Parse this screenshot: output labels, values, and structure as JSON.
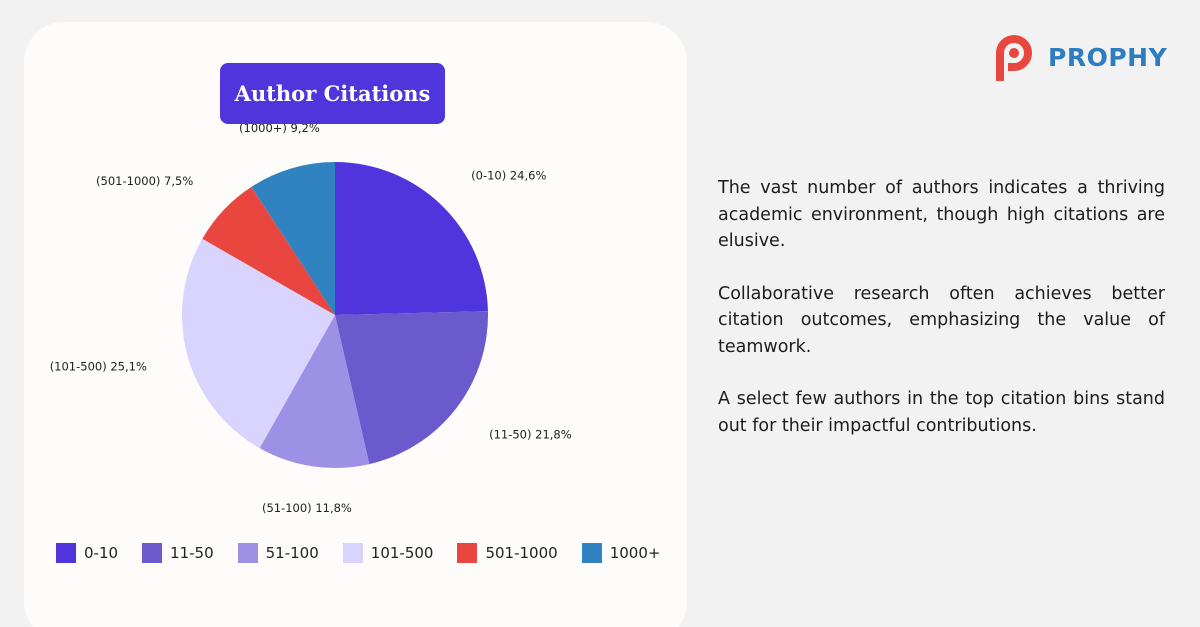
{
  "brand": {
    "name": "PROPHY",
    "logo_icon": "prophy-logo-icon",
    "logo_color": "#e94640"
  },
  "commentary": {
    "paragraphs": [
      "The vast number of authors indicates a thriving academic environment, though high citations are elusive.",
      "Collaborative research often achieves better citation outcomes, emphasizing the value of teamwork.",
      "A select few authors in the top citation bins stand out for their impactful contributions."
    ]
  },
  "chart_data": {
    "type": "pie",
    "title": "Author Citations",
    "title_bg_color": "#5035dc",
    "start_angle_deg": 0,
    "direction": "clockwise",
    "legend_position": "bottom",
    "slices": [
      {
        "name": "0-10",
        "label": "(0-10) 24,6%",
        "value": 24.6,
        "color": "#5035dc"
      },
      {
        "name": "11-50",
        "label": "(11-50) 21,8%",
        "value": 21.8,
        "color": "#6a5acd"
      },
      {
        "name": "51-100",
        "label": "(51-100) 11,8%",
        "value": 11.8,
        "color": "#9d91e6"
      },
      {
        "name": "101-500",
        "label": "(101-500) 25,1%",
        "value": 25.1,
        "color": "#d8d4fe"
      },
      {
        "name": "501-1000",
        "label": "(501-1000) 7,5%",
        "value": 7.5,
        "color": "#e94640"
      },
      {
        "name": "1000+",
        "label": "(1000+) 9,2%",
        "value": 9.2,
        "color": "#3182c1"
      }
    ]
  }
}
